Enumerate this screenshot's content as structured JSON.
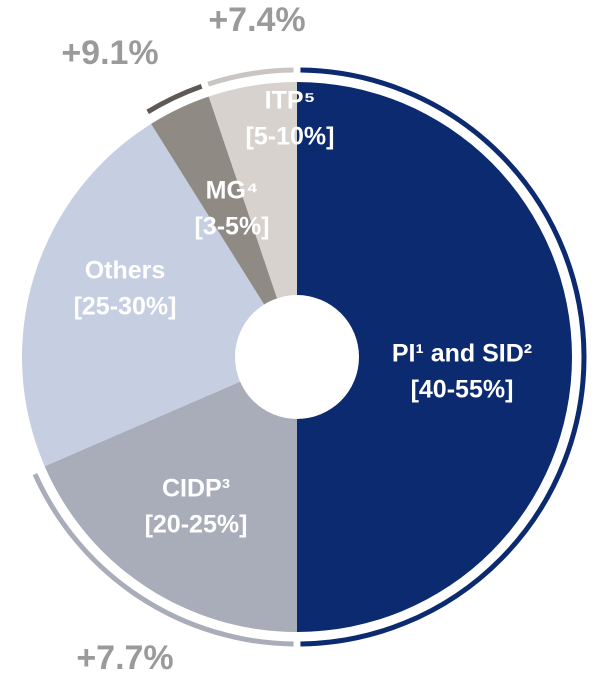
{
  "chart_data": {
    "type": "pie",
    "categories": [
      "PI¹ and SID²",
      "CIDP³",
      "Others",
      "MG⁴",
      "ITP⁵"
    ],
    "values": [
      50,
      18.5,
      22.6,
      3.7,
      5.2
    ],
    "ranges": [
      "[40-55%]",
      "[20-25%]",
      "[25-30%]",
      "[3-5%]",
      "[5-10%]"
    ],
    "growth": [
      null,
      "+7.7%",
      null,
      "+9.1%",
      "+7.4%"
    ],
    "colors": [
      "#0b2a6f",
      "#a9acb9",
      "#c6cee1",
      "#8f8a84",
      "#d7d2ce"
    ],
    "arc_colors": [
      "#0b2a6f",
      "#a9acb9",
      null,
      "#5e5955",
      "#c9c5c2"
    ]
  }
}
